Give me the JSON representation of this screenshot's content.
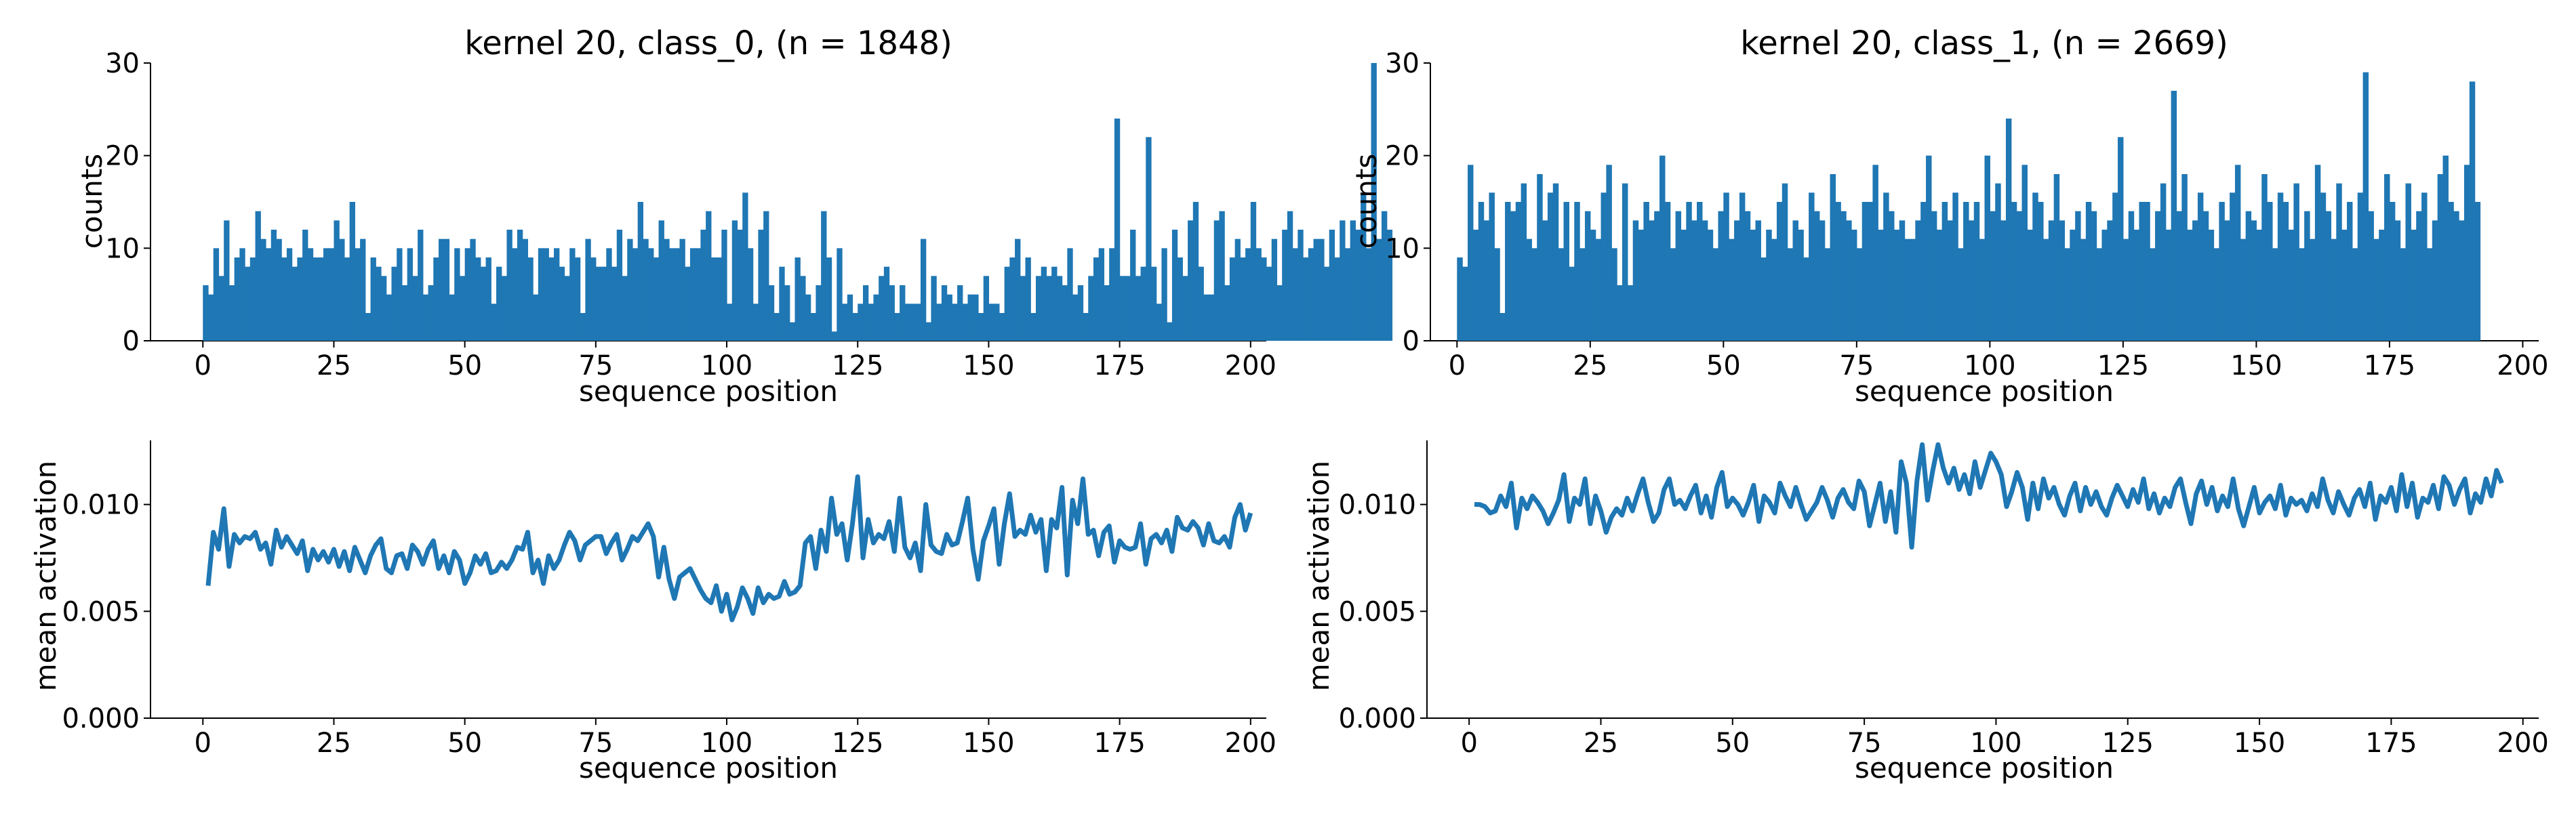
{
  "charts": {
    "hist_class0": {
      "title": "kernel 20, class_0, (n = 1848)",
      "xlabel": "sequence position",
      "ylabel": "counts",
      "xticks": [
        "0",
        "25",
        "50",
        "75",
        "100",
        "125",
        "150",
        "175",
        "200"
      ],
      "yticks": [
        "0",
        "10",
        "20",
        "30"
      ]
    },
    "hist_class1": {
      "title": "kernel 20, class_1, (n = 2669)",
      "xlabel": "sequence position",
      "ylabel": "counts",
      "xticks": [
        "0",
        "25",
        "50",
        "75",
        "100",
        "125",
        "150",
        "175",
        "200"
      ],
      "yticks": [
        "0",
        "10",
        "20",
        "30"
      ]
    },
    "line_class0": {
      "xlabel": "sequence position",
      "ylabel": "mean activation",
      "xticks": [
        "0",
        "25",
        "50",
        "75",
        "100",
        "125",
        "150",
        "175",
        "200"
      ],
      "yticks": [
        "0.000",
        "0.005",
        "0.010"
      ]
    },
    "line_class1": {
      "xlabel": "sequence position",
      "ylabel": "mean activation",
      "xticks": [
        "0",
        "25",
        "50",
        "75",
        "100",
        "125",
        "150",
        "175",
        "200"
      ],
      "yticks": [
        "0.000",
        "0.005",
        "0.010"
      ]
    }
  },
  "chart_data": [
    {
      "id": "hist_class0",
      "type": "bar",
      "title": "kernel 20, class_0, (n = 1848)",
      "xlabel": "sequence position",
      "ylabel": "counts",
      "xlim": [
        -10,
        203
      ],
      "ylim": [
        0,
        30
      ],
      "x_start": 0,
      "x_step": 1,
      "color": "#1f77b4",
      "values": [
        6,
        5,
        10,
        7,
        13,
        6,
        9,
        10,
        8,
        9,
        14,
        11,
        10,
        12,
        11,
        9,
        10,
        8,
        9,
        12,
        10,
        9,
        9,
        10,
        10,
        13,
        11,
        9,
        15,
        10,
        11,
        3,
        9,
        8,
        7,
        5,
        8,
        10,
        6,
        10,
        7,
        12,
        5,
        6,
        9,
        11,
        11,
        5,
        10,
        7,
        10,
        11,
        9,
        8,
        9,
        4,
        8,
        7,
        12,
        10,
        12,
        11,
        9,
        5,
        10,
        10,
        9,
        10,
        8,
        7,
        10,
        9,
        3,
        11,
        9,
        8,
        8,
        10,
        8,
        12,
        7,
        11,
        10,
        15,
        11,
        10,
        9,
        13,
        11,
        10,
        10,
        11,
        8,
        10,
        10,
        12,
        14,
        9,
        9,
        12,
        4,
        13,
        12,
        16,
        10,
        4,
        12,
        14,
        6,
        3,
        8,
        6,
        2,
        9,
        7,
        5,
        3,
        6,
        14,
        9,
        1,
        10,
        4,
        5,
        3,
        4,
        6,
        4,
        5,
        7,
        8,
        6,
        3,
        6,
        4,
        4,
        4,
        11,
        2,
        7,
        4,
        6,
        5,
        4,
        6,
        4,
        5,
        5,
        3,
        7,
        4,
        4,
        3,
        8,
        9,
        11,
        7,
        9,
        3,
        7,
        8,
        7,
        8,
        7,
        6,
        10,
        5,
        6,
        3,
        7,
        9,
        10,
        6,
        10,
        24,
        7,
        7,
        12,
        7,
        8,
        22,
        8,
        4,
        10,
        2,
        12,
        9,
        7,
        13,
        15,
        8,
        5,
        5,
        13,
        14,
        6,
        9,
        11,
        9,
        10,
        15,
        10,
        9,
        8,
        11,
        6,
        12,
        14,
        10,
        12,
        9,
        10,
        11,
        11,
        8,
        12,
        9,
        13,
        10,
        13,
        12,
        16,
        10,
        30,
        11,
        14,
        12
      ]
    },
    {
      "id": "hist_class1",
      "type": "bar",
      "title": "kernel 20, class_1, (n = 2669)",
      "xlabel": "sequence position",
      "ylabel": "counts",
      "xlim": [
        -5,
        203
      ],
      "ylim": [
        0,
        30
      ],
      "x_start": 0,
      "x_step": 1,
      "color": "#1f77b4",
      "values": [
        9,
        8,
        19,
        12,
        15,
        13,
        16,
        10,
        3,
        15,
        14,
        15,
        17,
        11,
        10,
        18,
        13,
        16,
        17,
        10,
        15,
        8,
        15,
        10,
        14,
        12,
        11,
        16,
        19,
        10,
        6,
        17,
        6,
        13,
        12,
        15,
        13,
        14,
        20,
        15,
        10,
        14,
        12,
        15,
        13,
        15,
        13,
        12,
        10,
        14,
        16,
        11,
        13,
        16,
        14,
        12,
        13,
        9,
        12,
        11,
        15,
        17,
        10,
        13,
        12,
        9,
        16,
        14,
        13,
        10,
        18,
        15,
        14,
        13,
        12,
        10,
        15,
        15,
        19,
        12,
        16,
        14,
        12,
        13,
        11,
        11,
        13,
        15,
        20,
        14,
        12,
        15,
        13,
        16,
        10,
        15,
        13,
        15,
        11,
        20,
        14,
        17,
        13,
        24,
        15,
        14,
        19,
        12,
        16,
        15,
        11,
        13,
        18,
        13,
        10,
        12,
        14,
        11,
        15,
        14,
        10,
        12,
        13,
        16,
        22,
        11,
        14,
        12,
        15,
        15,
        10,
        14,
        17,
        12,
        27,
        14,
        18,
        12,
        13,
        16,
        14,
        12,
        10,
        15,
        13,
        16,
        19,
        11,
        14,
        13,
        12,
        18,
        15,
        10,
        16,
        15,
        12,
        17,
        10,
        14,
        11,
        19,
        16,
        14,
        11,
        17,
        12,
        15,
        10,
        16,
        29,
        14,
        11,
        12,
        18,
        15,
        13,
        10,
        17,
        12,
        14,
        16,
        10,
        13,
        18,
        20,
        15,
        14,
        13,
        19,
        28,
        15
      ]
    },
    {
      "id": "line_class0",
      "type": "line",
      "xlabel": "sequence position",
      "ylabel": "mean activation",
      "xlim": [
        -10,
        203
      ],
      "ylim": [
        0,
        0.013
      ],
      "x_start": 1,
      "x_step": 1,
      "color": "#1f77b4",
      "values": [
        0.0062,
        0.0087,
        0.0079,
        0.0098,
        0.0071,
        0.0086,
        0.0082,
        0.0085,
        0.0084,
        0.0087,
        0.0079,
        0.0082,
        0.0072,
        0.0088,
        0.008,
        0.0085,
        0.0081,
        0.0077,
        0.0083,
        0.0069,
        0.0079,
        0.0074,
        0.0078,
        0.0073,
        0.0079,
        0.0071,
        0.0078,
        0.0069,
        0.008,
        0.0074,
        0.0068,
        0.0076,
        0.0081,
        0.0084,
        0.007,
        0.0068,
        0.0076,
        0.0077,
        0.007,
        0.0081,
        0.0078,
        0.0072,
        0.0079,
        0.0083,
        0.007,
        0.0076,
        0.0068,
        0.0078,
        0.0074,
        0.0063,
        0.0068,
        0.0076,
        0.0072,
        0.0077,
        0.0068,
        0.0069,
        0.0073,
        0.007,
        0.0074,
        0.008,
        0.0079,
        0.0087,
        0.0068,
        0.0074,
        0.0063,
        0.0076,
        0.007,
        0.0074,
        0.0081,
        0.0087,
        0.0083,
        0.0074,
        0.0081,
        0.0083,
        0.0085,
        0.0085,
        0.0077,
        0.0082,
        0.0086,
        0.0074,
        0.0079,
        0.0085,
        0.0083,
        0.0087,
        0.0091,
        0.0085,
        0.0066,
        0.008,
        0.0065,
        0.0056,
        0.0066,
        0.0068,
        0.007,
        0.0065,
        0.006,
        0.0056,
        0.0054,
        0.0062,
        0.005,
        0.0058,
        0.0046,
        0.0052,
        0.0061,
        0.0056,
        0.0049,
        0.0061,
        0.0054,
        0.0058,
        0.0056,
        0.0057,
        0.0064,
        0.0058,
        0.0059,
        0.0062,
        0.0082,
        0.0085,
        0.007,
        0.0088,
        0.0078,
        0.0103,
        0.0086,
        0.0091,
        0.0074,
        0.0091,
        0.0113,
        0.0075,
        0.0093,
        0.0082,
        0.0086,
        0.0084,
        0.0092,
        0.0078,
        0.0103,
        0.008,
        0.0075,
        0.0082,
        0.0069,
        0.01,
        0.0081,
        0.0078,
        0.0077,
        0.0086,
        0.0081,
        0.0082,
        0.0092,
        0.0103,
        0.0079,
        0.0065,
        0.0083,
        0.009,
        0.0098,
        0.0072,
        0.0091,
        0.0105,
        0.0085,
        0.0088,
        0.0086,
        0.0095,
        0.0087,
        0.0093,
        0.0069,
        0.0093,
        0.0089,
        0.0108,
        0.0067,
        0.0102,
        0.0091,
        0.0112,
        0.0086,
        0.0088,
        0.0076,
        0.0087,
        0.009,
        0.0073,
        0.0083,
        0.008,
        0.0079,
        0.008,
        0.0091,
        0.0072,
        0.0084,
        0.0086,
        0.0082,
        0.0088,
        0.0078,
        0.0094,
        0.0089,
        0.0088,
        0.0092,
        0.0089,
        0.0081,
        0.0091,
        0.0083,
        0.0082,
        0.0085,
        0.008,
        0.0094,
        0.01,
        0.0088,
        0.0096
      ]
    },
    {
      "id": "line_class1",
      "type": "line",
      "xlabel": "sequence position",
      "ylabel": "mean activation",
      "xlim": [
        -8,
        203
      ],
      "ylim": [
        0,
        0.013
      ],
      "x_start": 1,
      "x_step": 1,
      "color": "#1f77b4",
      "values": [
        0.01,
        0.01,
        0.0099,
        0.0096,
        0.0097,
        0.0104,
        0.0099,
        0.011,
        0.0089,
        0.0103,
        0.0098,
        0.0104,
        0.0101,
        0.0097,
        0.0091,
        0.0096,
        0.0102,
        0.0114,
        0.0092,
        0.0103,
        0.01,
        0.0112,
        0.0091,
        0.0104,
        0.0097,
        0.0087,
        0.0094,
        0.0098,
        0.0095,
        0.0103,
        0.0097,
        0.0105,
        0.0112,
        0.0101,
        0.0092,
        0.0096,
        0.0107,
        0.0112,
        0.01,
        0.0102,
        0.0098,
        0.0104,
        0.0109,
        0.0096,
        0.0104,
        0.0094,
        0.0108,
        0.0115,
        0.0099,
        0.0103,
        0.01,
        0.0095,
        0.0101,
        0.0109,
        0.0092,
        0.0104,
        0.0101,
        0.0096,
        0.011,
        0.0104,
        0.0099,
        0.0108,
        0.01,
        0.0093,
        0.0097,
        0.0101,
        0.0108,
        0.0102,
        0.0094,
        0.0103,
        0.0107,
        0.0101,
        0.0098,
        0.0111,
        0.0106,
        0.009,
        0.01,
        0.011,
        0.0092,
        0.0106,
        0.0087,
        0.012,
        0.011,
        0.008,
        0.0111,
        0.0128,
        0.0102,
        0.0116,
        0.0128,
        0.0117,
        0.011,
        0.0117,
        0.0107,
        0.0114,
        0.0105,
        0.012,
        0.0108,
        0.0116,
        0.0124,
        0.012,
        0.0114,
        0.0099,
        0.0106,
        0.0115,
        0.0108,
        0.0093,
        0.011,
        0.0098,
        0.0112,
        0.0103,
        0.0108,
        0.01,
        0.0095,
        0.0104,
        0.011,
        0.0097,
        0.0108,
        0.01,
        0.0106,
        0.0099,
        0.0095,
        0.0103,
        0.0109,
        0.0104,
        0.0099,
        0.0107,
        0.0101,
        0.0112,
        0.0098,
        0.0105,
        0.0096,
        0.0103,
        0.0099,
        0.0108,
        0.0112,
        0.0101,
        0.0091,
        0.0105,
        0.0111,
        0.01,
        0.0108,
        0.0097,
        0.0104,
        0.0099,
        0.0112,
        0.0098,
        0.009,
        0.0099,
        0.0108,
        0.0096,
        0.0101,
        0.0104,
        0.0098,
        0.0109,
        0.0095,
        0.0103,
        0.01,
        0.0102,
        0.0097,
        0.0105,
        0.0099,
        0.0112,
        0.0102,
        0.0096,
        0.0106,
        0.01,
        0.0095,
        0.0103,
        0.0107,
        0.0099,
        0.011,
        0.0093,
        0.0104,
        0.0101,
        0.0108,
        0.0097,
        0.0114,
        0.0099,
        0.011,
        0.0094,
        0.0103,
        0.0101,
        0.0109,
        0.0098,
        0.0113,
        0.0109,
        0.01,
        0.0107,
        0.0112,
        0.0096,
        0.0105,
        0.0101,
        0.0112,
        0.0104,
        0.0116,
        0.011
      ]
    }
  ]
}
